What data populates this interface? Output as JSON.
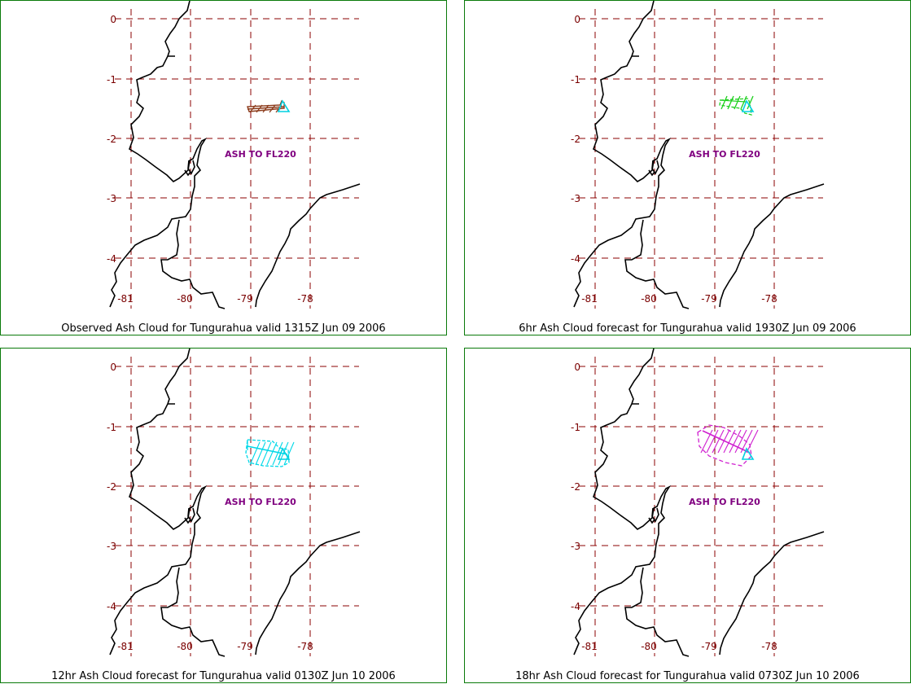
{
  "panels": [
    {
      "caption": "Observed Ash Cloud for Tungurahua valid 1315Z Jun 09 2006",
      "ash_label": "ASH TO FL220",
      "cloud_color": "#8b3a1a",
      "volcano_color": "#00d0e0",
      "cloud": "observed"
    },
    {
      "caption": "6hr Ash Cloud forecast for Tungurahua valid 1930Z Jun 09 2006",
      "ash_label": "ASH TO FL220",
      "cloud_color": "#1ed01e",
      "volcano_color": "#00d0e0",
      "cloud": "6hr"
    },
    {
      "caption": "12hr Ash Cloud forecast for Tungurahua valid 0130Z Jun 10 2006",
      "ash_label": "ASH TO FL220",
      "cloud_color": "#00d8e8",
      "volcano_color": "#00d0e0",
      "cloud": "12hr"
    },
    {
      "caption": "18hr Ash Cloud forecast for Tungurahua valid 0730Z Jun 10 2006",
      "ash_label": "ASH TO FL220",
      "cloud_color": "#d020d0",
      "volcano_color": "#00d0e0",
      "cloud": "18hr"
    }
  ],
  "map": {
    "lat_ticks": [
      "0",
      "-1",
      "-2",
      "-3",
      "-4"
    ],
    "lon_ticks": [
      "-81",
      "-80",
      "-79",
      "-78"
    ],
    "grid_color": "#8b0000",
    "tick_color": "#7a0000",
    "label_color": "#800080",
    "coast_color": "#000000"
  }
}
